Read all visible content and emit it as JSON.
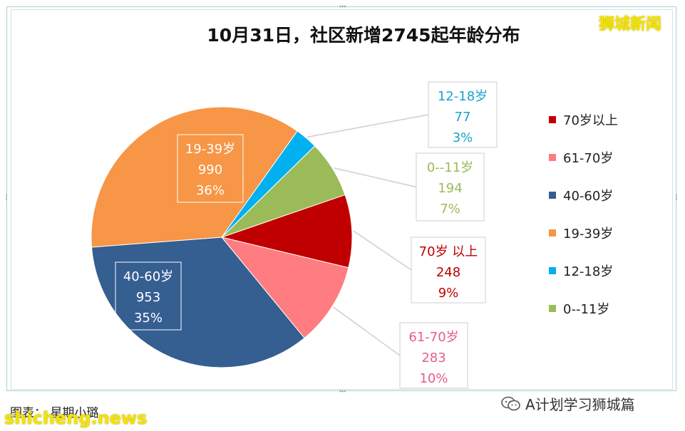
{
  "brand": "狮城新闻",
  "footer": {
    "source": "图表： 星期小璐",
    "site": "shicheng.news",
    "wechat": "A计划学习狮城篇"
  },
  "colors": {
    "70+": "#c00000",
    "61-70": "#ff7c80",
    "40-60": "#355e91",
    "19-39": "#f79646",
    "12-18": "#00b0f0",
    "0-11": "#9bbb59"
  },
  "chart_data": {
    "type": "pie",
    "title": "10月31日，社区新增2745起年龄分布",
    "total": 2745,
    "legend_position": "right",
    "slices": [
      {
        "key": "70+",
        "label": "70岁以上",
        "box_label": "70岁 以上",
        "value": 248,
        "percent": "9%",
        "color": "#c00000",
        "label_color": "#c00000"
      },
      {
        "key": "61-70",
        "label": "61-70岁",
        "box_label": "61-70岁",
        "value": 283,
        "percent": "10%",
        "color": "#ff7c80",
        "label_color": "#e35f86"
      },
      {
        "key": "40-60",
        "label": "40-60岁",
        "box_label": "40-60岁",
        "value": 953,
        "percent": "35%",
        "color": "#355e91",
        "label_color": "#ffffff"
      },
      {
        "key": "19-39",
        "label": "19-39岁",
        "box_label": "19-39岁",
        "value": 990,
        "percent": "36%",
        "color": "#f79646",
        "label_color": "#ffffff"
      },
      {
        "key": "12-18",
        "label": "12-18岁",
        "box_label": "12-18岁",
        "value": 77,
        "percent": "3%",
        "color": "#00b0f0",
        "label_color": "#1aa3c9"
      },
      {
        "key": "0-11",
        "label": "0--11岁",
        "box_label": "0--11岁",
        "value": 194,
        "percent": "7%",
        "color": "#9bbb59",
        "label_color": "#9bbb59"
      }
    ],
    "legend_order": [
      "70+",
      "61-70",
      "40-60",
      "19-39",
      "12-18",
      "0-11"
    ]
  }
}
